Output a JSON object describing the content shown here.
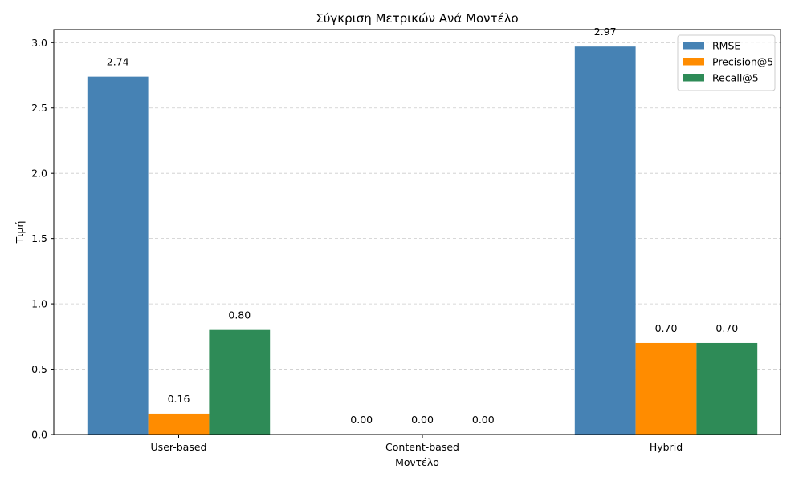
{
  "chart_data": {
    "type": "bar",
    "title": "Σύγκριση Μετρικών Ανά Μοντέλο",
    "xlabel": "Μοντέλο",
    "ylabel": "Τιμή",
    "categories": [
      "User-based",
      "Content-based",
      "Hybrid"
    ],
    "series": [
      {
        "name": "RMSE",
        "values": [
          2.74,
          0.0,
          2.97
        ],
        "labels": [
          "2.74",
          "0.00",
          "2.97"
        ],
        "color": "#4682b4"
      },
      {
        "name": "Precision@5",
        "values": [
          0.16,
          0.0,
          0.7
        ],
        "labels": [
          "0.16",
          "0.00",
          "0.70"
        ],
        "color": "#ff8c00"
      },
      {
        "name": "Recall@5",
        "values": [
          0.8,
          0.0,
          0.7
        ],
        "labels": [
          "0.80",
          "0.00",
          "0.70"
        ],
        "color": "#2e8b57"
      }
    ],
    "ylim": [
      0,
      3.1
    ],
    "yticks": [
      0.0,
      0.5,
      1.0,
      1.5,
      2.0,
      2.5,
      3.0
    ],
    "ytick_labels": [
      "0.0",
      "0.5",
      "1.0",
      "1.5",
      "2.0",
      "2.5",
      "3.0"
    ],
    "grid": "y-dashed",
    "legend_position": "top-right"
  }
}
